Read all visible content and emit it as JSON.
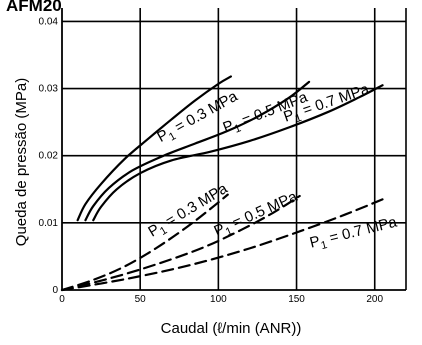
{
  "heading": "AFM20",
  "chart_data": {
    "type": "line",
    "title": "",
    "xlabel": "Caudal (ℓ/min (ANR))",
    "ylabel": "Queda de pressão (MPa)",
    "xlim": [
      0,
      220
    ],
    "ylim": [
      0,
      0.042
    ],
    "x_ticks": [
      "0",
      "50",
      "100",
      "150",
      "200"
    ],
    "y_ticks": [
      "0",
      "0.01",
      "0.02",
      "0.03",
      "0.04"
    ],
    "grid": true,
    "series": [
      {
        "name": "P1 = 0.3 MPa",
        "style": "solid",
        "points": [
          [
            10,
            0.0104
          ],
          [
            15,
            0.0128
          ],
          [
            25,
            0.0158
          ],
          [
            40,
            0.0195
          ],
          [
            55,
            0.0225
          ],
          [
            70,
            0.0254
          ],
          [
            85,
            0.0282
          ],
          [
            100,
            0.0307
          ],
          [
            108,
            0.0318
          ]
        ]
      },
      {
        "name": "P1 = 0.5 MPa",
        "style": "solid",
        "points": [
          [
            15,
            0.0104
          ],
          [
            20,
            0.0125
          ],
          [
            30,
            0.0152
          ],
          [
            45,
            0.0178
          ],
          [
            65,
            0.02
          ],
          [
            85,
            0.0218
          ],
          [
            105,
            0.0236
          ],
          [
            125,
            0.0258
          ],
          [
            145,
            0.0286
          ],
          [
            158,
            0.031
          ]
        ]
      },
      {
        "name": "P1 = 0.7 MPa",
        "style": "solid",
        "points": [
          [
            20,
            0.0104
          ],
          [
            25,
            0.0124
          ],
          [
            35,
            0.015
          ],
          [
            50,
            0.0174
          ],
          [
            70,
            0.0193
          ],
          [
            95,
            0.0206
          ],
          [
            120,
            0.0222
          ],
          [
            145,
            0.0242
          ],
          [
            170,
            0.0265
          ],
          [
            190,
            0.0287
          ],
          [
            205,
            0.0305
          ]
        ]
      },
      {
        "name": "P1 = 0.3 MPa",
        "style": "dashed",
        "points": [
          [
            0,
            0.0
          ],
          [
            20,
            0.0015
          ],
          [
            40,
            0.0035
          ],
          [
            60,
            0.0062
          ],
          [
            80,
            0.0094
          ],
          [
            95,
            0.0121
          ],
          [
            106,
            0.0142
          ]
        ]
      },
      {
        "name": "P1 = 0.5 MPa",
        "style": "dashed",
        "points": [
          [
            0,
            0.0
          ],
          [
            30,
            0.0017
          ],
          [
            60,
            0.0038
          ],
          [
            90,
            0.0063
          ],
          [
            115,
            0.009
          ],
          [
            135,
            0.0115
          ],
          [
            152,
            0.014
          ]
        ]
      },
      {
        "name": "P1 = 0.7 MPa",
        "style": "dashed",
        "points": [
          [
            0,
            0.0
          ],
          [
            40,
            0.0016
          ],
          [
            80,
            0.0036
          ],
          [
            120,
            0.0062
          ],
          [
            160,
            0.0094
          ],
          [
            185,
            0.0116
          ],
          [
            205,
            0.0135
          ]
        ]
      }
    ],
    "annotations": [
      {
        "prefix": "P",
        "sub": "1",
        "text": " = 0.3 MPa",
        "x": 88,
        "y": 0.0252,
        "angle": -29
      },
      {
        "prefix": "P",
        "sub": "1",
        "text": " = 0.5 MPa",
        "x": 131,
        "y": 0.0258,
        "angle": -21
      },
      {
        "prefix": "P",
        "sub": "1",
        "text": " = 0.7 MPa",
        "x": 170,
        "y": 0.0272,
        "angle": -19
      },
      {
        "prefix": "P",
        "sub": "1",
        "text": " = 0.3 MPa",
        "x": 82,
        "y": 0.0113,
        "angle": -31
      },
      {
        "prefix": "P",
        "sub": "1",
        "text": " = 0.5 MPa",
        "x": 125,
        "y": 0.0107,
        "angle": -24
      },
      {
        "prefix": "P",
        "sub": "1",
        "text": " = 0.7 MPa",
        "x": 187,
        "y": 0.0079,
        "angle": -14
      }
    ]
  }
}
